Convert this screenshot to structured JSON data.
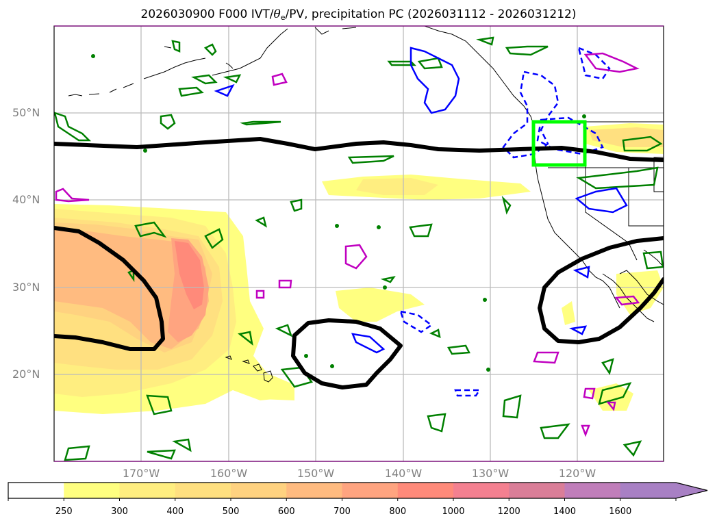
{
  "title": {
    "prefix": "2026030900 F000 IVT/",
    "theta": "θ",
    "theta_sub": "e",
    "suffix": "/PV, precipitation PC (2026031112 - 2026031212)"
  },
  "map": {
    "lat_labels": [
      "50°N",
      "40°N",
      "30°N",
      "20°N"
    ],
    "lon_labels": [
      "170°W",
      "160°W",
      "150°W",
      "140°W",
      "130°W",
      "120°W"
    ],
    "highlight_box_color": "#00FF00",
    "pv_contour_color": "#000000",
    "precip_positive_color": "#008000",
    "precip_negative_color": "#0000FF",
    "precip_extreme_color": "#C000C0"
  },
  "colorbar": {
    "ticks": [
      "250",
      "300",
      "400",
      "500",
      "600",
      "700",
      "800",
      "1000",
      "1200",
      "1400",
      "1600"
    ],
    "colors": [
      "#FFFFFF",
      "#FFFF80",
      "#FFEE80",
      "#FFE080",
      "#FFD280",
      "#FFBB80",
      "#FFA480",
      "#FF8A7A",
      "#F48090",
      "#DA7E98",
      "#C07EBA",
      "#A880C4"
    ],
    "extend": "max"
  }
}
